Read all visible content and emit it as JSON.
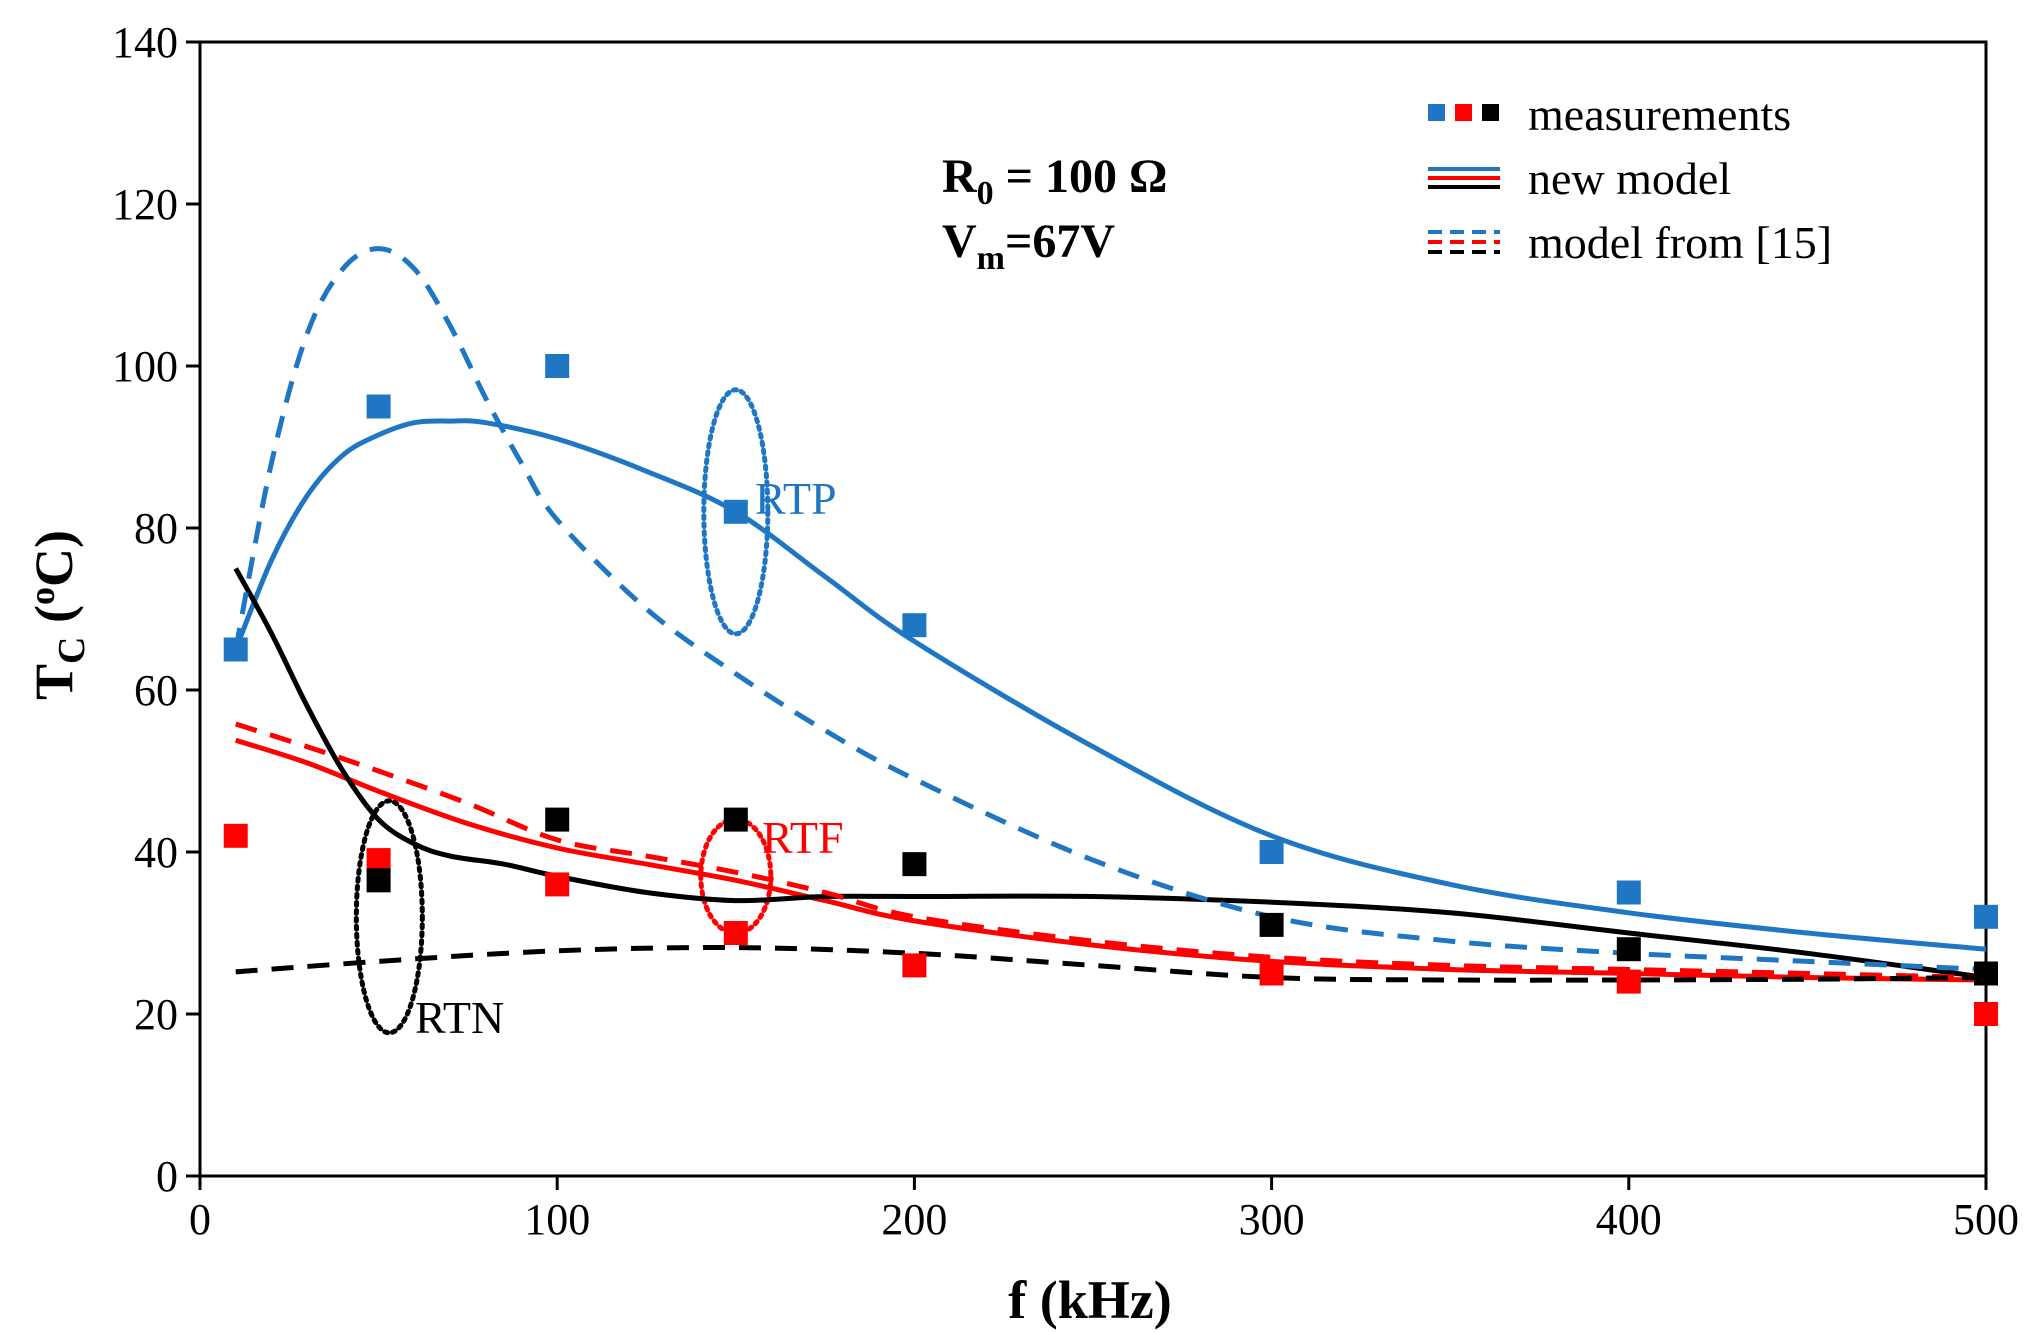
{
  "chart_data": {
    "type": "line",
    "x_label": "f (kHz)",
    "y_label": {
      "main": "T",
      "sub": "C",
      "units_open": " (",
      "sup": "o",
      "units_close": "C)"
    },
    "xlim": [
      0,
      500
    ],
    "ylim": [
      0,
      140
    ],
    "x_ticks": [
      0,
      100,
      200,
      300,
      400,
      500
    ],
    "y_ticks": [
      0,
      20,
      40,
      60,
      80,
      100,
      120,
      140
    ],
    "params": [
      {
        "main": "R",
        "sub": "0",
        "rest": " = 100 Ω"
      },
      {
        "main": "V",
        "sub": "m",
        "rest": "=67V"
      }
    ],
    "colors": {
      "RTP": "#1f77c4",
      "RTF": "#ff0000",
      "RTN": "#000000"
    },
    "legend": {
      "position": "top-right",
      "entries": [
        {
          "label": "measurements",
          "style": "markers"
        },
        {
          "label": "new model",
          "style": "solid"
        },
        {
          "label": "model from [15]",
          "style": "dashed"
        }
      ]
    },
    "annotations": [
      {
        "text": "RTP",
        "series": "RTP",
        "x": 150,
        "y": 82
      },
      {
        "text": "RTF",
        "series": "RTF",
        "x": 150,
        "y": 37
      },
      {
        "text": "RTN",
        "series": "RTN",
        "x": 53,
        "y": 32
      }
    ],
    "series": [
      {
        "name": "RTP measurements",
        "group": "RTP",
        "kind": "markers",
        "x": [
          10,
          50,
          100,
          150,
          200,
          300,
          400,
          500
        ],
        "y": [
          65,
          95,
          100,
          82,
          68,
          40,
          35,
          32
        ]
      },
      {
        "name": "RTF measurements",
        "group": "RTF",
        "kind": "markers",
        "x": [
          10,
          50,
          100,
          150,
          200,
          300,
          400,
          500
        ],
        "y": [
          42,
          39,
          36,
          30,
          26,
          25,
          24,
          20
        ]
      },
      {
        "name": "RTN measurements",
        "group": "RTN",
        "kind": "markers",
        "x": [
          50,
          100,
          150,
          200,
          300,
          400,
          500
        ],
        "y": [
          36.5,
          44,
          44,
          38.5,
          31,
          28,
          25
        ]
      },
      {
        "name": "RTP new model",
        "group": "RTP",
        "kind": "solid",
        "x": [
          10,
          20,
          30,
          40,
          50,
          60,
          70,
          80,
          100,
          125,
          150,
          175,
          200,
          250,
          300,
          350,
          400,
          450,
          500
        ],
        "y": [
          65,
          76,
          84,
          89,
          91.5,
          93,
          93.2,
          93,
          91,
          87,
          82,
          74,
          66,
          53,
          42,
          36,
          32.5,
          30,
          28
        ]
      },
      {
        "name": "RTF new model",
        "group": "RTF",
        "kind": "solid",
        "x": [
          10,
          30,
          50,
          75,
          100,
          125,
          150,
          175,
          200,
          250,
          300,
          350,
          400,
          450,
          500
        ],
        "y": [
          53.8,
          51,
          47.5,
          43.5,
          40.5,
          38.5,
          36.5,
          34,
          31.5,
          28.5,
          26.5,
          25.5,
          25,
          24.5,
          24.2
        ]
      },
      {
        "name": "RTN new model",
        "group": "RTN",
        "kind": "solid",
        "x": [
          10,
          20,
          30,
          40,
          50,
          60,
          70,
          85,
          100,
          125,
          150,
          175,
          200,
          250,
          300,
          350,
          400,
          450,
          500
        ],
        "y": [
          75,
          67,
          58,
          50,
          44,
          41,
          39.5,
          38.5,
          37,
          35,
          34,
          34.5,
          34.5,
          34.5,
          33.8,
          32.5,
          30,
          27.5,
          24.5
        ]
      },
      {
        "name": "RTP model from [15]",
        "group": "RTP",
        "kind": "dashed",
        "x": [
          10,
          20,
          30,
          40,
          50,
          60,
          70,
          80,
          90,
          100,
          125,
          150,
          175,
          200,
          250,
          300,
          350,
          400,
          450,
          500
        ],
        "y": [
          65,
          88,
          104,
          112,
          114.5,
          112,
          105,
          96,
          88,
          81,
          70,
          62,
          55,
          49,
          39,
          32,
          29,
          27.5,
          26.5,
          25.5
        ]
      },
      {
        "name": "RTF model from [15]",
        "group": "RTF",
        "kind": "dashed",
        "x": [
          10,
          30,
          50,
          75,
          100,
          125,
          150,
          175,
          200,
          250,
          300,
          350,
          400,
          450,
          500
        ],
        "y": [
          55.8,
          53,
          50,
          46,
          41.5,
          39.5,
          37.5,
          35,
          32,
          29,
          27,
          26,
          25.5,
          25,
          24.5
        ]
      },
      {
        "name": "RTN model from [15]",
        "group": "RTN",
        "kind": "dashed",
        "x": [
          10,
          50,
          100,
          150,
          200,
          250,
          300,
          350,
          400,
          450,
          500
        ],
        "y": [
          25.2,
          26.5,
          27.8,
          28.2,
          27.5,
          26,
          24.5,
          24.2,
          24.2,
          24.3,
          24.5
        ]
      }
    ]
  }
}
